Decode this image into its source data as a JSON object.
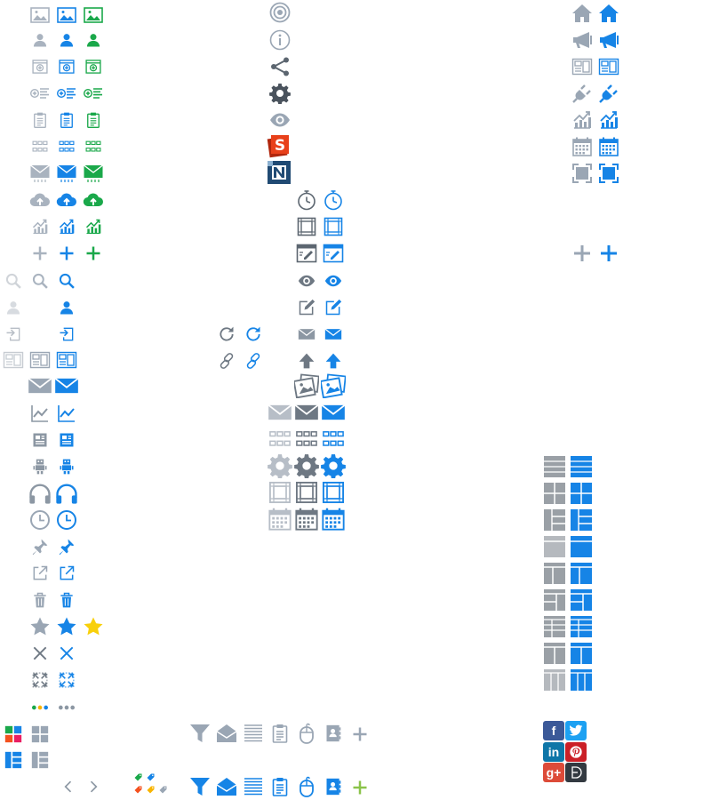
{
  "palette": {
    "gray": "#9aa6b4",
    "gray_dark": "#6e7883",
    "light_gray": "#c7ccd2",
    "blue": "#1684e6",
    "green": "#1aa84a",
    "yellow": "#f8d00b",
    "orange": "#f4511e",
    "navy": "#204a73",
    "lime": "#8bc34a"
  },
  "icons": {
    "col_a": [
      "image-icon",
      "user-icon",
      "add-window-icon",
      "add-list-icon",
      "clipboard-icon",
      "grid-icon",
      "mail-inbox-icon",
      "cloud-upload-icon",
      "growth-chart-icon",
      "plus-icon"
    ],
    "col_a_lower": [
      "search-icon",
      "user-icon",
      "import-icon",
      "layout-icon",
      "mail-icon",
      "line-chart-icon",
      "news-icon",
      "robot-icon",
      "headphones-icon",
      "clock-icon",
      "pin-icon",
      "external-link-icon",
      "trash-icon",
      "star-icon",
      "close-icon",
      "expand-icon",
      "dots-icon"
    ],
    "col_b": [
      "target-icon",
      "info-icon",
      "share-icon",
      "gear-icon",
      "eye-icon",
      "s-logo-icon",
      "n-logo-icon"
    ],
    "col_b_lower": [
      "stopwatch-icon",
      "frame-icon",
      "edit-window-icon",
      "eye-icon",
      "edit-icon",
      "mail-icon",
      "upload-arrow-icon",
      "images-icon",
      "mail-icon",
      "grid-icon",
      "gear-icon",
      "frame-icon",
      "calendar-icon"
    ],
    "col_c": [
      "home-icon",
      "megaphone-icon",
      "layout-icon",
      "plug-icon",
      "growth-chart-icon",
      "calendar-icon",
      "fullscreen-icon",
      "plus-icon"
    ],
    "layouts": [
      "layout-rows-icon",
      "layout-quad-icon",
      "layout-sidebar-icon",
      "layout-header-icon",
      "layout-split-icon",
      "layout-split-right-icon",
      "layout-list-icon",
      "layout-two-col-icon",
      "layout-three-col-icon"
    ],
    "bottom_row": [
      "filter-icon",
      "open-mail-icon",
      "text-lines-icon",
      "clipboard-icon",
      "mouse-icon",
      "address-book-icon",
      "plus-icon"
    ],
    "social": [
      "facebook-icon",
      "twitter-icon",
      "linkedin-icon",
      "pinterest-icon",
      "google-plus-icon",
      "delicious-icon"
    ]
  },
  "social_letters": {
    "facebook": "f",
    "linkedin": "in",
    "googleplus": "g+"
  }
}
